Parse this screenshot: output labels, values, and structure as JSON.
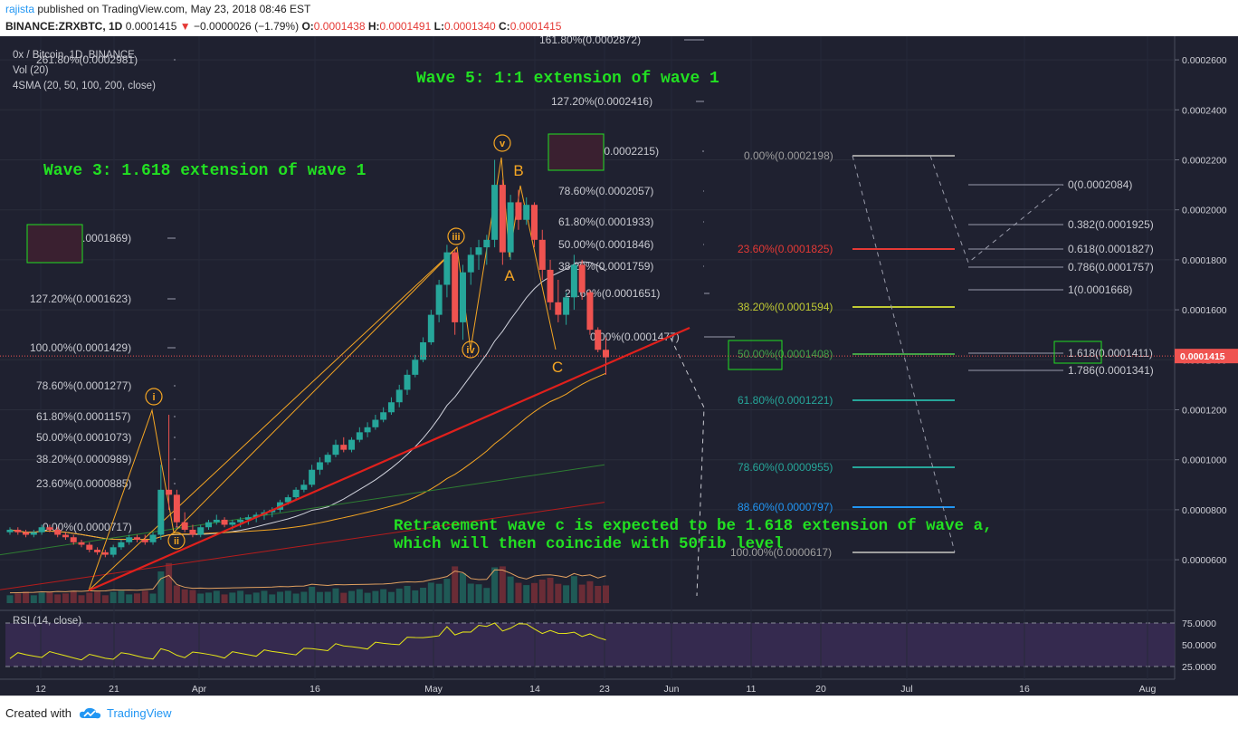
{
  "header": {
    "author": "rajista",
    "published_text": "published on TradingView.com, May 23, 2018 08:46 EST",
    "symbol": "BINANCE:ZRXBTC, 1D",
    "last": "0.0001415",
    "change": "−0.0000026 (−1.79%)",
    "o_label": "O:",
    "o": "0.0001438",
    "h_label": "H:",
    "h": "0.0001491",
    "l_label": "L:",
    "l": "0.0001340",
    "c_label": "C:",
    "c": "0.0001415"
  },
  "legend": {
    "pair": "0x / Bitcoin, 1D, BINANCE",
    "vol": "Vol (20)",
    "sma": "4SMA (20, 50, 100, 200, close)",
    "rsi": "RSI (14, close)"
  },
  "annotations": {
    "wave5": "Wave 5: 1:1 extension of wave 1",
    "wave3": "Wave 3: 1.618 extension of wave 1",
    "retrace1": "Retracement wave c is expected to be 1.618 extension of wave a,",
    "retrace2": "which will then coincide with 50fib level"
  },
  "footer": {
    "created_with": "Created with",
    "brand": "TradingView"
  },
  "colors": {
    "background": "#1f2130",
    "up": "#26a69a",
    "down": "#ef5350",
    "accent_green": "#22e022",
    "trendline": "#e0201c",
    "orange": "#f5a623"
  },
  "chart_data": {
    "type": "candlestick",
    "price_axis": {
      "ticks": [
        "0.0002600",
        "0.0002400",
        "0.0002200",
        "0.0002000",
        "0.0001800",
        "0.0001600",
        "0.0001400",
        "0.0001200",
        "0.0001000",
        "0.0000800",
        "0.0000600"
      ],
      "current_price": "0.0001415"
    },
    "time_axis": {
      "ticks": [
        "12",
        "21",
        "Apr",
        "16",
        "May",
        "14",
        "23",
        "Jun",
        "11",
        "20",
        "Jul",
        "16",
        "Aug"
      ]
    },
    "rsi_axis": {
      "ticks": [
        "75.0000",
        "50.0000",
        "25.0000"
      ]
    },
    "wave_labels": {
      "i": "i",
      "ii": "ii",
      "iii": "iii",
      "iv": "iv",
      "v": "v",
      "A": "A",
      "B": "B",
      "C": "C"
    },
    "fib_extension_left": [
      {
        "label": "261.80%(0.0002981)"
      },
      {
        "label": "161.80%(0.0001869)"
      },
      {
        "label": "127.20%(0.0001623)"
      },
      {
        "label": "100.00%(0.0001429)"
      },
      {
        "label": "78.60%(0.0001277)"
      },
      {
        "label": "61.80%(0.0001157)"
      },
      {
        "label": "50.00%(0.0001073)"
      },
      {
        "label": "38.20%(0.0000989)"
      },
      {
        "label": "23.60%(0.0000885)"
      },
      {
        "label": "0.00%(0.0000717)"
      }
    ],
    "fib_extension_wave5": [
      {
        "label": "161.80%(0.0002872)"
      },
      {
        "label": "127.20%(0.0002416)"
      },
      {
        "label": "100.00%(0.0002215)"
      },
      {
        "label": "78.60%(0.0002057)"
      },
      {
        "label": "61.80%(0.0001933)"
      },
      {
        "label": "50.00%(0.0001846)"
      },
      {
        "label": "38.20%(0.0001759)"
      },
      {
        "label": "23.60%(0.0001651)"
      },
      {
        "label": "0.00%(0.0001477)"
      }
    ],
    "fib_retracement": [
      {
        "label": "0.00%(0.0002198)",
        "color": "#9e9e9e"
      },
      {
        "label": "23.60%(0.0001825)",
        "color": "#e53935"
      },
      {
        "label": "38.20%(0.0001594)",
        "color": "#c0ca33"
      },
      {
        "label": "50.00%(0.0001408)",
        "color": "#43a047"
      },
      {
        "label": "61.80%(0.0001221)",
        "color": "#26a69a"
      },
      {
        "label": "78.60%(0.0000955)",
        "color": "#26a69a"
      },
      {
        "label": "88.60%(0.0000797)",
        "color": "#2196f3"
      },
      {
        "label": "100.00%(0.0000617)",
        "color": "#9e9e9e"
      }
    ],
    "fib_extension_right": [
      {
        "label": "0(0.0002084)"
      },
      {
        "label": "0.382(0.0001925)"
      },
      {
        "label": "0.618(0.0001827)"
      },
      {
        "label": "0.786(0.0001757)"
      },
      {
        "label": "1(0.0001668)"
      },
      {
        "label": "1.618(0.0001411)"
      },
      {
        "label": "1.786(0.0001341)"
      }
    ],
    "candles": [
      [
        71,
        73,
        70,
        72
      ],
      [
        72,
        73,
        70,
        71
      ],
      [
        71,
        72,
        69,
        70
      ],
      [
        70,
        72,
        69,
        71
      ],
      [
        71,
        74,
        70,
        73
      ],
      [
        73,
        74,
        71,
        72
      ],
      [
        72,
        73,
        69,
        70
      ],
      [
        70,
        71,
        68,
        69
      ],
      [
        69,
        70,
        66,
        67
      ],
      [
        67,
        68,
        65,
        66
      ],
      [
        66,
        67,
        63,
        64
      ],
      [
        64,
        65,
        62,
        63
      ],
      [
        63,
        64,
        61,
        62
      ],
      [
        62,
        66,
        61,
        65
      ],
      [
        65,
        68,
        64,
        67
      ],
      [
        67,
        70,
        66,
        69
      ],
      [
        69,
        70,
        67,
        68
      ],
      [
        68,
        70,
        66,
        67
      ],
      [
        67,
        71,
        66,
        70
      ],
      [
        70,
        98,
        68,
        88
      ],
      [
        88,
        118,
        80,
        86
      ],
      [
        86,
        88,
        73,
        75
      ],
      [
        75,
        79,
        71,
        72
      ],
      [
        72,
        74,
        69,
        70
      ],
      [
        70,
        74,
        69,
        73
      ],
      [
        73,
        76,
        72,
        75
      ],
      [
        75,
        78,
        74,
        76
      ],
      [
        76,
        77,
        73,
        74
      ],
      [
        74,
        76,
        72,
        75
      ],
      [
        75,
        77,
        73,
        76
      ],
      [
        76,
        78,
        74,
        77
      ],
      [
        77,
        79,
        75,
        78
      ],
      [
        78,
        80,
        76,
        79
      ],
      [
        79,
        81,
        77,
        80
      ],
      [
        80,
        84,
        79,
        83
      ],
      [
        83,
        86,
        82,
        85
      ],
      [
        85,
        89,
        84,
        88
      ],
      [
        88,
        92,
        87,
        90
      ],
      [
        90,
        98,
        89,
        96
      ],
      [
        96,
        101,
        94,
        99
      ],
      [
        99,
        103,
        98,
        102
      ],
      [
        102,
        108,
        101,
        106
      ],
      [
        106,
        109,
        103,
        104
      ],
      [
        104,
        109,
        103,
        108
      ],
      [
        108,
        113,
        107,
        111
      ],
      [
        111,
        115,
        109,
        113
      ],
      [
        113,
        118,
        112,
        116
      ],
      [
        116,
        121,
        115,
        119
      ],
      [
        119,
        125,
        118,
        123
      ],
      [
        123,
        130,
        121,
        128
      ],
      [
        128,
        136,
        126,
        134
      ],
      [
        134,
        142,
        133,
        140
      ],
      [
        140,
        149,
        139,
        147
      ],
      [
        147,
        160,
        146,
        158
      ],
      [
        158,
        172,
        155,
        170
      ],
      [
        170,
        186,
        165,
        183
      ],
      [
        183,
        184,
        150,
        155
      ],
      [
        155,
        178,
        148,
        175
      ],
      [
        175,
        185,
        170,
        182
      ],
      [
        182,
        188,
        176,
        185
      ],
      [
        185,
        190,
        178,
        188
      ],
      [
        188,
        220,
        185,
        210
      ],
      [
        210,
        212,
        178,
        183
      ],
      [
        183,
        206,
        180,
        203
      ],
      [
        203,
        208,
        192,
        196
      ],
      [
        196,
        205,
        194,
        202
      ],
      [
        202,
        203,
        185,
        188
      ],
      [
        188,
        192,
        172,
        176
      ],
      [
        176,
        180,
        160,
        163
      ],
      [
        163,
        172,
        155,
        158
      ],
      [
        158,
        167,
        154,
        165
      ],
      [
        165,
        182,
        160,
        178
      ],
      [
        178,
        180,
        164,
        167
      ],
      [
        167,
        168,
        150,
        152
      ],
      [
        152,
        153,
        143,
        144
      ],
      [
        144,
        149,
        134,
        141
      ]
    ]
  }
}
